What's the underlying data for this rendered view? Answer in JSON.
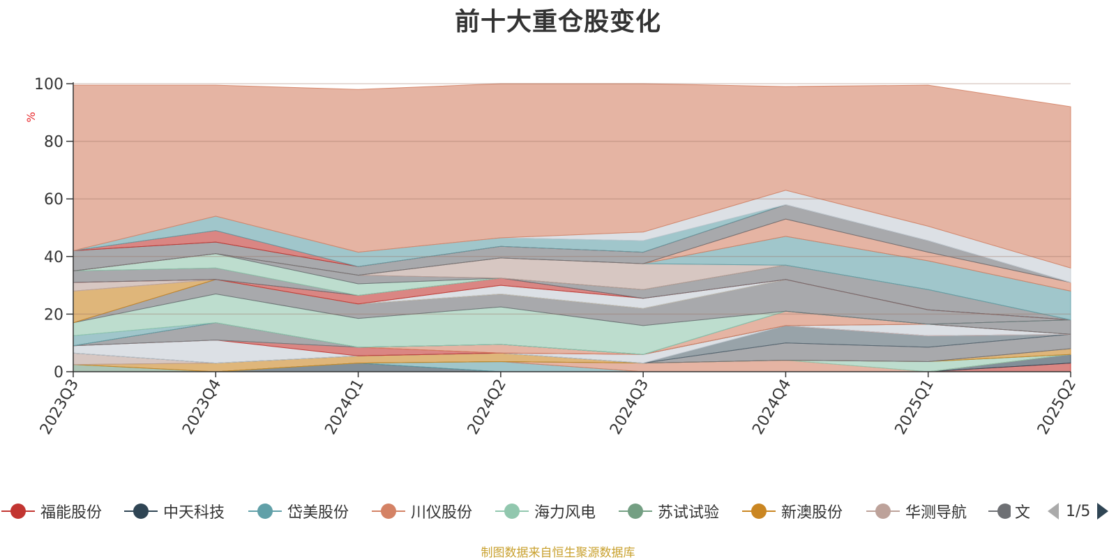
{
  "title": "前十大重仓股变化",
  "footer": "制图数据来自恒生聚源数据库",
  "legend_pager": "1/5",
  "chart_data": {
    "type": "area",
    "stacked": true,
    "ylabel": "%",
    "ylim": [
      0,
      100
    ],
    "yticks": [
      "0",
      "20",
      "40",
      "60",
      "80",
      "100"
    ],
    "categories": [
      "2023Q3",
      "2023Q4",
      "2024Q1",
      "2024Q2",
      "2024Q3",
      "2024Q4",
      "2025Q1",
      "2025Q2"
    ],
    "legend": [
      "福能股份",
      "中天科技",
      "岱美股份",
      "川仪股份",
      "海力风电",
      "苏试试验",
      "新澳股份",
      "华测导航",
      "文"
    ],
    "legend_colors": [
      "#c23531",
      "#2f4554",
      "#61a0a8",
      "#d48265",
      "#91c7ae",
      "#749f83",
      "#ca8622",
      "#bda29a",
      "#6e7074"
    ],
    "series": [
      {
        "name": "福能股份",
        "color": "#c23531",
        "values": [
          0,
          0,
          0,
          0,
          0,
          0,
          0,
          3
        ]
      },
      {
        "name": "中天科技",
        "color": "#2f4554",
        "values": [
          0,
          0,
          3,
          0,
          0,
          0,
          0,
          3
        ]
      },
      {
        "name": "岱美股份",
        "color": "#61a0a8",
        "values": [
          0,
          0,
          0,
          3.5,
          0,
          0,
          0,
          0
        ]
      },
      {
        "name": "川仪股份",
        "color": "#d48265",
        "values": [
          0,
          0,
          0,
          0,
          3,
          4,
          0,
          0
        ]
      },
      {
        "name": "海力风电",
        "color": "#91c7ae",
        "values": [
          0,
          0,
          0,
          0,
          0,
          0,
          3.5,
          0
        ]
      },
      {
        "name": "苏试试验",
        "color": "#749f83",
        "values": [
          2.5,
          0,
          0,
          0,
          0,
          0,
          0,
          0
        ]
      },
      {
        "name": "新澳股份",
        "color": "#ca8622",
        "values": [
          0,
          3,
          2.5,
          3,
          0,
          0,
          0,
          2
        ]
      },
      {
        "name": "华测导航",
        "color": "#bda29a",
        "values": [
          4,
          0,
          0,
          0,
          0,
          0,
          0,
          0
        ]
      },
      {
        "name": "文",
        "color": "#6e7074",
        "values": [
          0,
          0,
          0,
          0,
          0,
          6,
          5,
          5
        ]
      },
      {
        "name": "",
        "color": "#546570",
        "values": [
          0,
          0,
          0,
          0,
          0,
          6,
          4,
          0
        ]
      },
      {
        "name": "",
        "color": "#c4ccd3",
        "values": [
          2.5,
          8,
          0,
          0,
          3,
          0,
          0,
          0
        ]
      },
      {
        "name": "",
        "color": "#c23531",
        "values": [
          0,
          0,
          3,
          0,
          0,
          0,
          0,
          0
        ]
      },
      {
        "name": "",
        "color": "#d48265",
        "values": [
          0,
          0,
          0,
          3,
          0,
          0,
          0,
          0
        ]
      },
      {
        "name": "",
        "color": "#c4ccd3",
        "values": [
          0,
          0,
          0,
          0,
          0,
          0,
          4,
          0
        ]
      },
      {
        "name": "",
        "color": "#6e7074",
        "values": [
          0,
          6,
          0,
          0,
          0,
          0,
          0,
          0
        ]
      },
      {
        "name": "",
        "color": "#d48265",
        "values": [
          0,
          0,
          0,
          0,
          0,
          5,
          0,
          0
        ]
      },
      {
        "name": "",
        "color": "#6e7074",
        "values": [
          0,
          0,
          0,
          0,
          0,
          0,
          0,
          5
        ]
      },
      {
        "name": "",
        "color": "#61a0a8",
        "values": [
          3.5,
          0,
          0,
          0,
          0,
          0,
          0,
          0
        ]
      },
      {
        "name": "",
        "color": "#91c7ae",
        "values": [
          4.5,
          10,
          10,
          13,
          10,
          0,
          0,
          0
        ]
      },
      {
        "name": "",
        "color": "#6e7074",
        "values": [
          0,
          5,
          5,
          4.5,
          6,
          11,
          5,
          0
        ]
      },
      {
        "name": "",
        "color": "#ca8622",
        "values": [
          11,
          0,
          0,
          0,
          0,
          0,
          0,
          0
        ]
      },
      {
        "name": "",
        "color": "#c4ccd3",
        "values": [
          0,
          0,
          0,
          3,
          3.5,
          0,
          0,
          0
        ]
      },
      {
        "name": "",
        "color": "#6e7074",
        "values": [
          0,
          0,
          0,
          0,
          0,
          0,
          0,
          0
        ]
      },
      {
        "name": "",
        "color": "#bda29a",
        "values": [
          3,
          0,
          0,
          0,
          0,
          0,
          0,
          0
        ]
      },
      {
        "name": "",
        "color": "#c23531",
        "values": [
          0,
          0,
          3,
          2.5,
          0,
          0,
          0,
          0
        ]
      },
      {
        "name": "",
        "color": "#6e7074",
        "values": [
          4,
          4,
          0,
          0,
          3,
          5,
          7,
          0
        ]
      },
      {
        "name": "",
        "color": "#91c7ae",
        "values": [
          0,
          5,
          4,
          0,
          0,
          0,
          0,
          0
        ]
      },
      {
        "name": "",
        "color": "#6e7074",
        "values": [
          0,
          0,
          3,
          0,
          0,
          0,
          0,
          0
        ]
      },
      {
        "name": "",
        "color": "#bda29a",
        "values": [
          0,
          0,
          0,
          7,
          9,
          0,
          0,
          0
        ]
      },
      {
        "name": "",
        "color": "#61a0a8",
        "values": [
          0,
          0,
          0,
          0,
          0,
          10,
          10,
          10
        ]
      },
      {
        "name": "",
        "color": "#d48265",
        "values": [
          0,
          0,
          0,
          0,
          0,
          6,
          3,
          3
        ]
      },
      {
        "name": "",
        "color": "#6e7074",
        "values": [
          7,
          4,
          3,
          4,
          4,
          5,
          4,
          0
        ]
      },
      {
        "name": "",
        "color": "#c23531",
        "values": [
          0,
          4,
          0,
          0,
          0,
          0,
          0,
          0
        ]
      },
      {
        "name": "",
        "color": "#61a0a8",
        "values": [
          0,
          5,
          5,
          3,
          4,
          0,
          0,
          0
        ]
      },
      {
        "name": "",
        "color": "#c4ccd3",
        "values": [
          0,
          0,
          0,
          0,
          3,
          5,
          5,
          5
        ]
      },
      {
        "name": "",
        "color": "#d48265",
        "values": [
          57.5,
          45.5,
          56.5,
          55,
          51.5,
          36,
          49,
          56
        ]
      }
    ]
  }
}
